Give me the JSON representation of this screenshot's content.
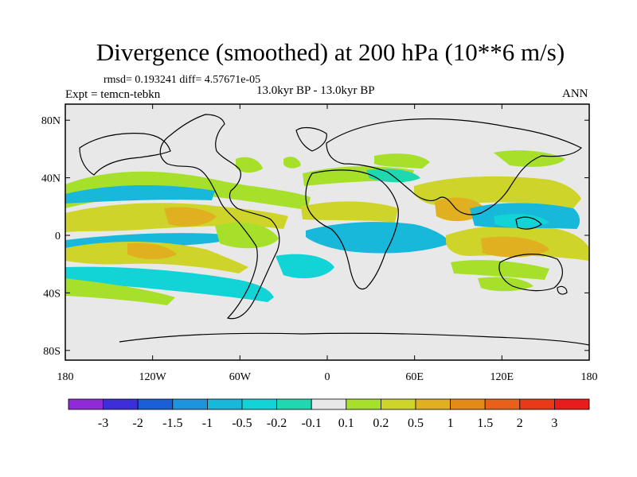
{
  "title": "Divergence (smoothed) at 200 hPa (10**6 m/s)",
  "stats": "rmsd= 0.193241 diff= 4.57671e-05",
  "experiment": "Expt = temcn-tebkn",
  "period": "13.0kyr BP - 13.0kyr BP",
  "season": "ANN",
  "axes": {
    "lat_ticks": [
      "80N",
      "40N",
      "0",
      "40S",
      "80S"
    ],
    "lon_ticks": [
      "180",
      "120W",
      "60W",
      "0",
      "60E",
      "120E",
      "180"
    ]
  },
  "colorbar": {
    "labels": [
      "-3",
      "-2",
      "-1.5",
      "-1",
      "-0.5",
      "-0.2",
      "-0.1",
      "0.1",
      "0.2",
      "0.5",
      "1",
      "1.5",
      "2",
      "3"
    ],
    "colors": [
      "#8f2bd6",
      "#3c2fd9",
      "#1a5ed8",
      "#1d95dc",
      "#17b8d9",
      "#12d4d6",
      "#1fd8b0",
      "#e8e8e8",
      "#a6e02b",
      "#cfd42a",
      "#e0b020",
      "#e48a16",
      "#e8601a",
      "#e83a18",
      "#e81c1c"
    ]
  },
  "colors": {
    "ocean_bg": "#e8e8e8",
    "pos_weak": "#a6e02b",
    "pos_mid": "#cfd42a",
    "pos_strong": "#e0b020",
    "neg_weak": "#1fd8b0",
    "neg_mid": "#12d4d6",
    "neg_strong": "#17b8d9",
    "coast": "#000000"
  }
}
